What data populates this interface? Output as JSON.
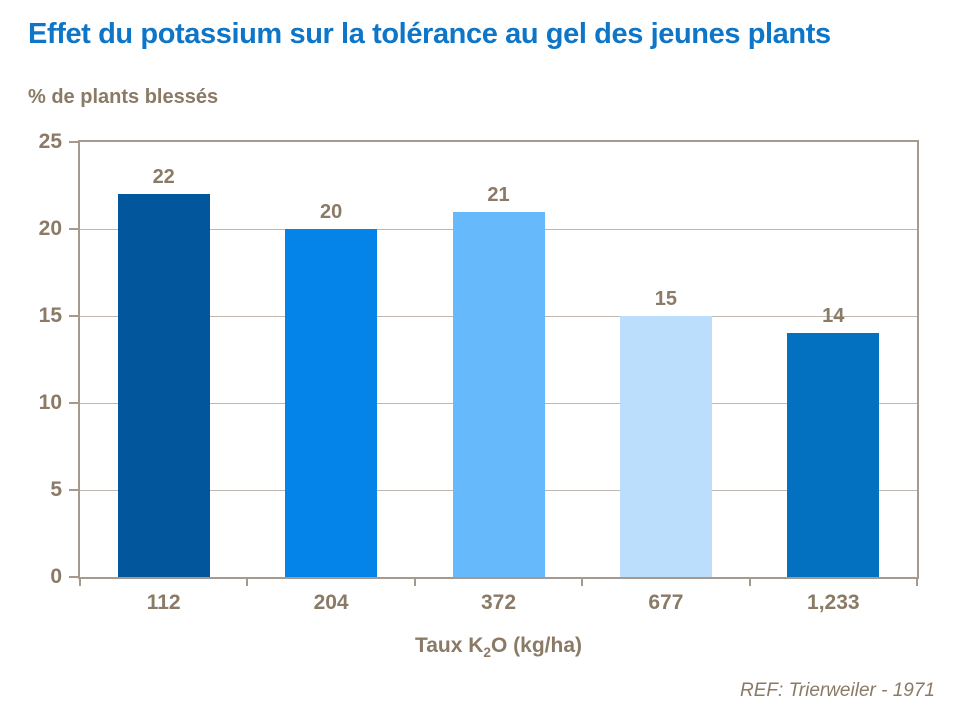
{
  "chart_data": {
    "type": "bar",
    "title": "Effet du potassium sur la tolérance au gel des jeunes plants",
    "ylabel": "% de plants blessés",
    "xlabel": {
      "prefix": "Taux K",
      "sub": "2",
      "suffix": "O (kg/ha)"
    },
    "categories": [
      "112",
      "204",
      "372",
      "677",
      "1,233"
    ],
    "values": [
      22,
      20,
      21,
      15,
      14
    ],
    "bar_colors": [
      "#02569b",
      "#0484e8",
      "#66bafb",
      "#badefb",
      "#0370c0"
    ],
    "yticks": [
      0,
      5,
      10,
      15,
      20,
      25
    ],
    "ylim": [
      0,
      25
    ],
    "grid": true,
    "legend": "none",
    "ref": "REF: Trierweiler - 1971",
    "colors": {
      "title": "#0e76c8",
      "axis_text": "#8a7a66",
      "axis_frame": "#a59a8d",
      "gridline": "#bfb8b0",
      "background": "#ffffff"
    }
  }
}
